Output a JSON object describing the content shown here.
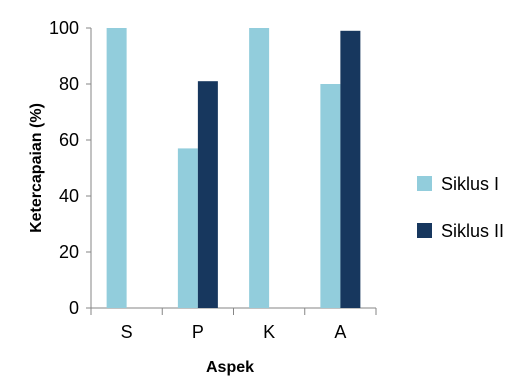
{
  "chart_data": {
    "type": "bar",
    "categories": [
      "S",
      "P",
      "K",
      "A"
    ],
    "series": [
      {
        "name": "Siklus I",
        "values": [
          100,
          57,
          100,
          80
        ],
        "color": "#92cddc"
      },
      {
        "name": "Siklus II",
        "values": [
          0,
          81,
          0,
          99
        ],
        "color": "#17375e"
      }
    ],
    "title": "",
    "xlabel": "Aspek",
    "ylabel": "Ketercapaian (%)",
    "ylim": [
      0,
      100
    ],
    "yticks": [
      0,
      20,
      40,
      60,
      80,
      100
    ],
    "grid": false,
    "legend_position": "right"
  }
}
